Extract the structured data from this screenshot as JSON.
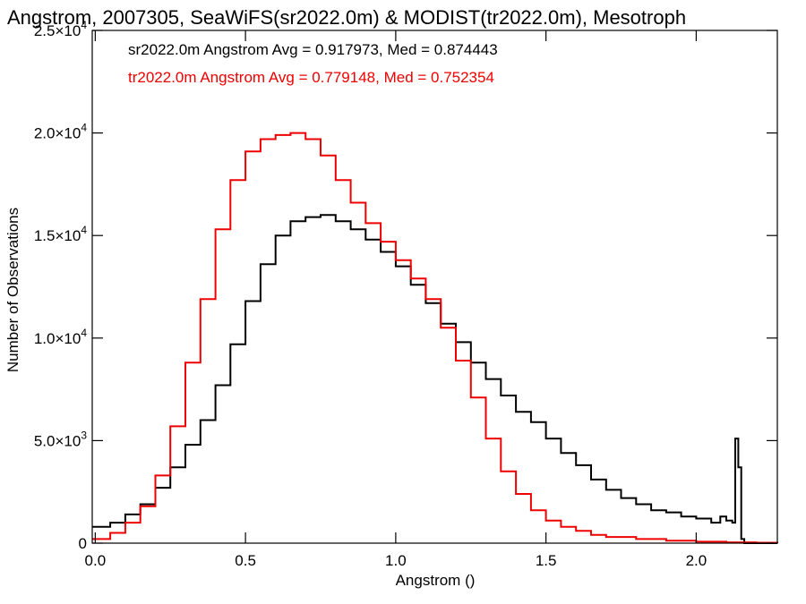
{
  "chart_data": {
    "type": "line",
    "title": "Angstrom, 2007305, SeaWiFS(sr2022.0m) & MODIST(tr2022.0m), Mesotroph",
    "xlabel": "Angstrom ()",
    "ylabel": "Number of Observations",
    "xlim": [
      -0.01,
      2.27
    ],
    "ylim": [
      0,
      25000
    ],
    "x_ticks": [
      {
        "value": 0.0,
        "label": "0.0"
      },
      {
        "value": 0.5,
        "label": "0.5"
      },
      {
        "value": 1.0,
        "label": "1.0"
      },
      {
        "value": 1.5,
        "label": "1.5"
      },
      {
        "value": 2.0,
        "label": "2.0"
      }
    ],
    "y_ticks": [
      {
        "value": 0,
        "mantissa": "0",
        "exponent": ""
      },
      {
        "value": 5000,
        "mantissa": "5.0×10",
        "exponent": "3"
      },
      {
        "value": 10000,
        "mantissa": "1.0×10",
        "exponent": "4"
      },
      {
        "value": 15000,
        "mantissa": "1.5×10",
        "exponent": "4"
      },
      {
        "value": 20000,
        "mantissa": "2.0×10",
        "exponent": "4"
      },
      {
        "value": 25000,
        "mantissa": "2.5×10",
        "exponent": "4"
      }
    ],
    "grid": false,
    "annotations": [
      {
        "text": "sr2022.0m Angstrom Avg = 0.917973, Med = 0.874443",
        "color": "#000000"
      },
      {
        "text": "tr2022.0m Angstrom Avg = 0.779148, Med = 0.752354",
        "color": "#ee0000"
      }
    ],
    "series": [
      {
        "color": "#000000",
        "x": [
          -0.01,
          0.05,
          0.1,
          0.15,
          0.2,
          0.25,
          0.3,
          0.35,
          0.4,
          0.45,
          0.5,
          0.55,
          0.6,
          0.65,
          0.7,
          0.75,
          0.8,
          0.85,
          0.9,
          0.95,
          1.0,
          1.05,
          1.1,
          1.15,
          1.2,
          1.25,
          1.3,
          1.35,
          1.4,
          1.45,
          1.5,
          1.55,
          1.6,
          1.65,
          1.7,
          1.75,
          1.8,
          1.85,
          1.9,
          1.95,
          2.0,
          2.05,
          2.08,
          2.1,
          2.12,
          2.13,
          2.14,
          2.15,
          2.16,
          2.2,
          2.27
        ],
        "y": [
          800,
          1000,
          1400,
          1900,
          2700,
          3700,
          4800,
          6000,
          7700,
          9700,
          11800,
          13600,
          15000,
          15700,
          15900,
          16000,
          15700,
          15300,
          14800,
          14200,
          13500,
          12600,
          11700,
          10700,
          9800,
          8800,
          8000,
          7200,
          6400,
          5900,
          5100,
          4400,
          3800,
          3100,
          2600,
          2200,
          1900,
          1600,
          1500,
          1300,
          1200,
          1000,
          1300,
          1100,
          1000,
          5100,
          3700,
          200,
          0,
          0,
          0
        ]
      },
      {
        "color": "#ee0000",
        "x": [
          -0.01,
          0.05,
          0.1,
          0.15,
          0.2,
          0.25,
          0.3,
          0.35,
          0.4,
          0.45,
          0.5,
          0.55,
          0.6,
          0.65,
          0.7,
          0.75,
          0.8,
          0.85,
          0.9,
          0.95,
          1.0,
          1.05,
          1.1,
          1.15,
          1.2,
          1.25,
          1.3,
          1.35,
          1.4,
          1.45,
          1.5,
          1.55,
          1.6,
          1.65,
          1.7,
          1.8,
          1.9,
          2.0,
          2.1,
          2.2,
          2.27
        ],
        "y": [
          200,
          500,
          1000,
          1800,
          3300,
          5700,
          8800,
          11900,
          15300,
          17700,
          19100,
          19700,
          19900,
          20000,
          19700,
          18900,
          17700,
          16600,
          15600,
          14700,
          13800,
          12900,
          11900,
          10500,
          8900,
          7100,
          5100,
          3500,
          2400,
          1600,
          1100,
          800,
          600,
          400,
          300,
          200,
          120,
          70,
          40,
          20,
          0
        ]
      }
    ]
  }
}
